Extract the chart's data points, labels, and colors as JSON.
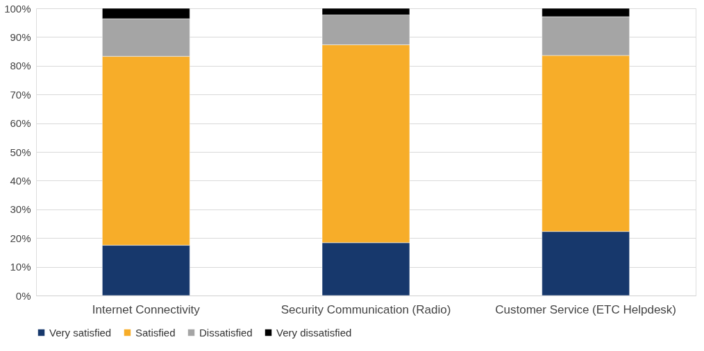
{
  "chart_data": {
    "type": "bar",
    "stacked": true,
    "categories": [
      "Internet Connectivity",
      "Security Communication (Radio)",
      "Customer Service (ETC Helpdesk)"
    ],
    "series": [
      {
        "name": "Very satisfied",
        "color": "#17386c",
        "values": [
          17.5,
          18.4,
          22.3
        ]
      },
      {
        "name": "Satisfied",
        "color": "#f7ad29",
        "values": [
          65.8,
          68.9,
          61.3
        ]
      },
      {
        "name": "Dissatisfied",
        "color": "#a5a5a5",
        "values": [
          13.1,
          10.4,
          13.5
        ]
      },
      {
        "name": "Very dissatisfied",
        "color": "#000000",
        "values": [
          3.6,
          2.3,
          2.9
        ]
      }
    ],
    "ylim": [
      0,
      100
    ],
    "yticks": [
      {
        "value": 0,
        "label": "0%"
      },
      {
        "value": 10,
        "label": "10%"
      },
      {
        "value": 20,
        "label": "20%"
      },
      {
        "value": 30,
        "label": "30%"
      },
      {
        "value": 40,
        "label": "40%"
      },
      {
        "value": 50,
        "label": "50%"
      },
      {
        "value": 60,
        "label": "60%"
      },
      {
        "value": 70,
        "label": "70%"
      },
      {
        "value": 80,
        "label": "80%"
      },
      {
        "value": 90,
        "label": "90%"
      },
      {
        "value": 100,
        "label": "100%"
      }
    ],
    "grid": "y",
    "legend": "bottom"
  }
}
